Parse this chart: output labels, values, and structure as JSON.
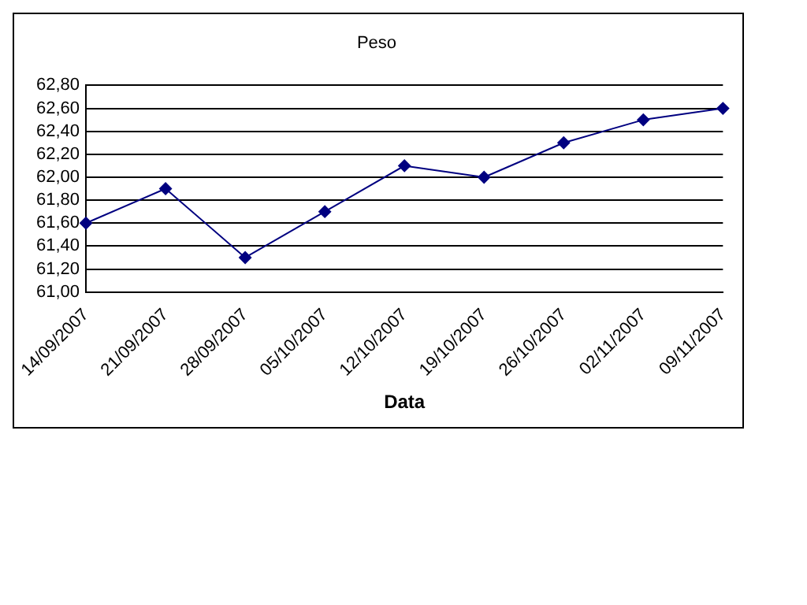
{
  "chart_data": {
    "type": "line",
    "title": "Peso",
    "xlabel": "Data",
    "categories": [
      "14/09/2007",
      "21/09/2007",
      "28/09/2007",
      "05/10/2007",
      "12/10/2007",
      "19/10/2007",
      "26/10/2007",
      "02/11/2007",
      "09/11/2007"
    ],
    "series": [
      {
        "color": "#000080",
        "values": [
          61.6,
          61.9,
          61.3,
          61.7,
          62.1,
          62.0,
          62.3,
          62.5,
          62.6
        ]
      }
    ],
    "ylim": [
      61.0,
      62.8
    ],
    "yticks": [
      {
        "value": 61.0,
        "label": "61,00"
      },
      {
        "value": 61.2,
        "label": "61,20"
      },
      {
        "value": 61.4,
        "label": "61,40"
      },
      {
        "value": 61.6,
        "label": "61,60"
      },
      {
        "value": 61.8,
        "label": "61,80"
      },
      {
        "value": 62.0,
        "label": "62,00"
      },
      {
        "value": 62.2,
        "label": "62,20"
      },
      {
        "value": 62.4,
        "label": "62,40"
      },
      {
        "value": 62.6,
        "label": "62,60"
      },
      {
        "value": 62.8,
        "label": "62,80"
      }
    ],
    "grid": "y",
    "legend": false,
    "marker": "diamond",
    "line_style": "solid"
  }
}
